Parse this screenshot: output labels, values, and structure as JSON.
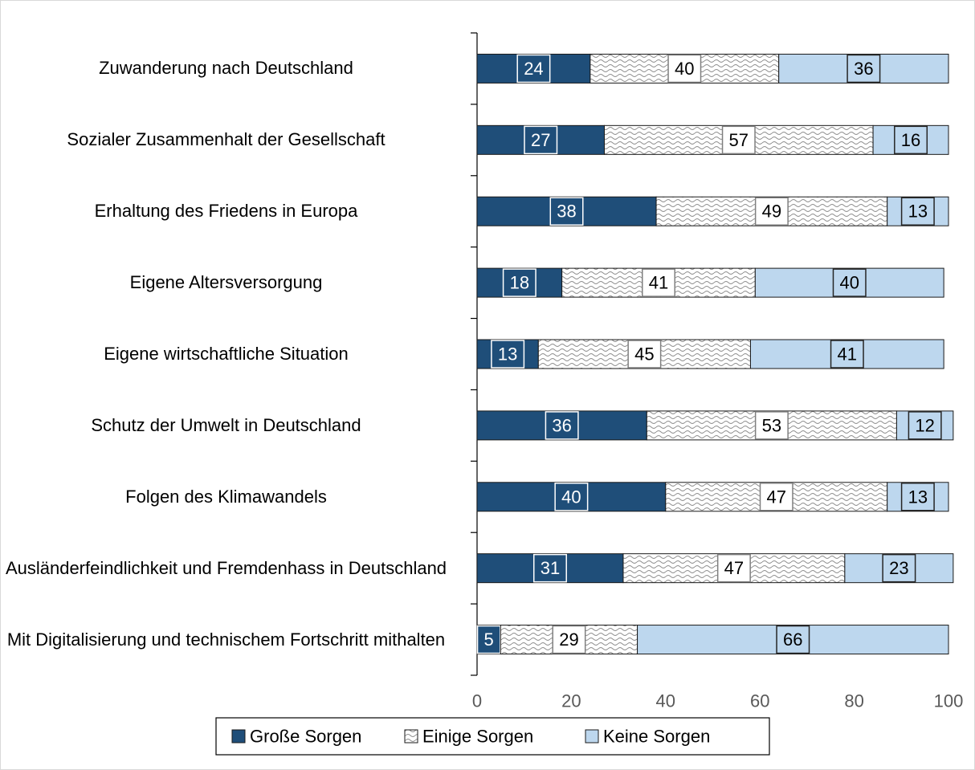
{
  "chart_data": {
    "type": "stacked-bar-horizontal",
    "categories": [
      "Zuwanderung nach Deutschland",
      "Sozialer Zusammenhalt der Gesellschaft",
      "Erhaltung des Friedens in Europa",
      "Eigene Altersversorgung",
      "Eigene wirtschaftliche Situation",
      "Schutz der Umwelt in Deutschland",
      "Folgen des Klimawandels",
      "Ausländerfeindlichkeit und Fremdenhass in Deutschland",
      "Mit Digitalisierung und technischem Fortschritt mithalten"
    ],
    "series": [
      {
        "name": "Große Sorgen",
        "color": "#1f4e79",
        "values": [
          24,
          27,
          38,
          18,
          13,
          36,
          40,
          31,
          5
        ]
      },
      {
        "name": "Einige Sorgen",
        "color": "#f2f2f2",
        "values": [
          40,
          57,
          49,
          41,
          45,
          53,
          47,
          47,
          29
        ]
      },
      {
        "name": "Keine Sorgen",
        "color": "#bdd7ee",
        "values": [
          36,
          16,
          13,
          40,
          41,
          12,
          13,
          23,
          66
        ]
      }
    ],
    "xlim": [
      0,
      100
    ],
    "xticks": [
      0,
      20,
      40,
      60,
      80,
      100
    ],
    "legend": "bottom"
  }
}
